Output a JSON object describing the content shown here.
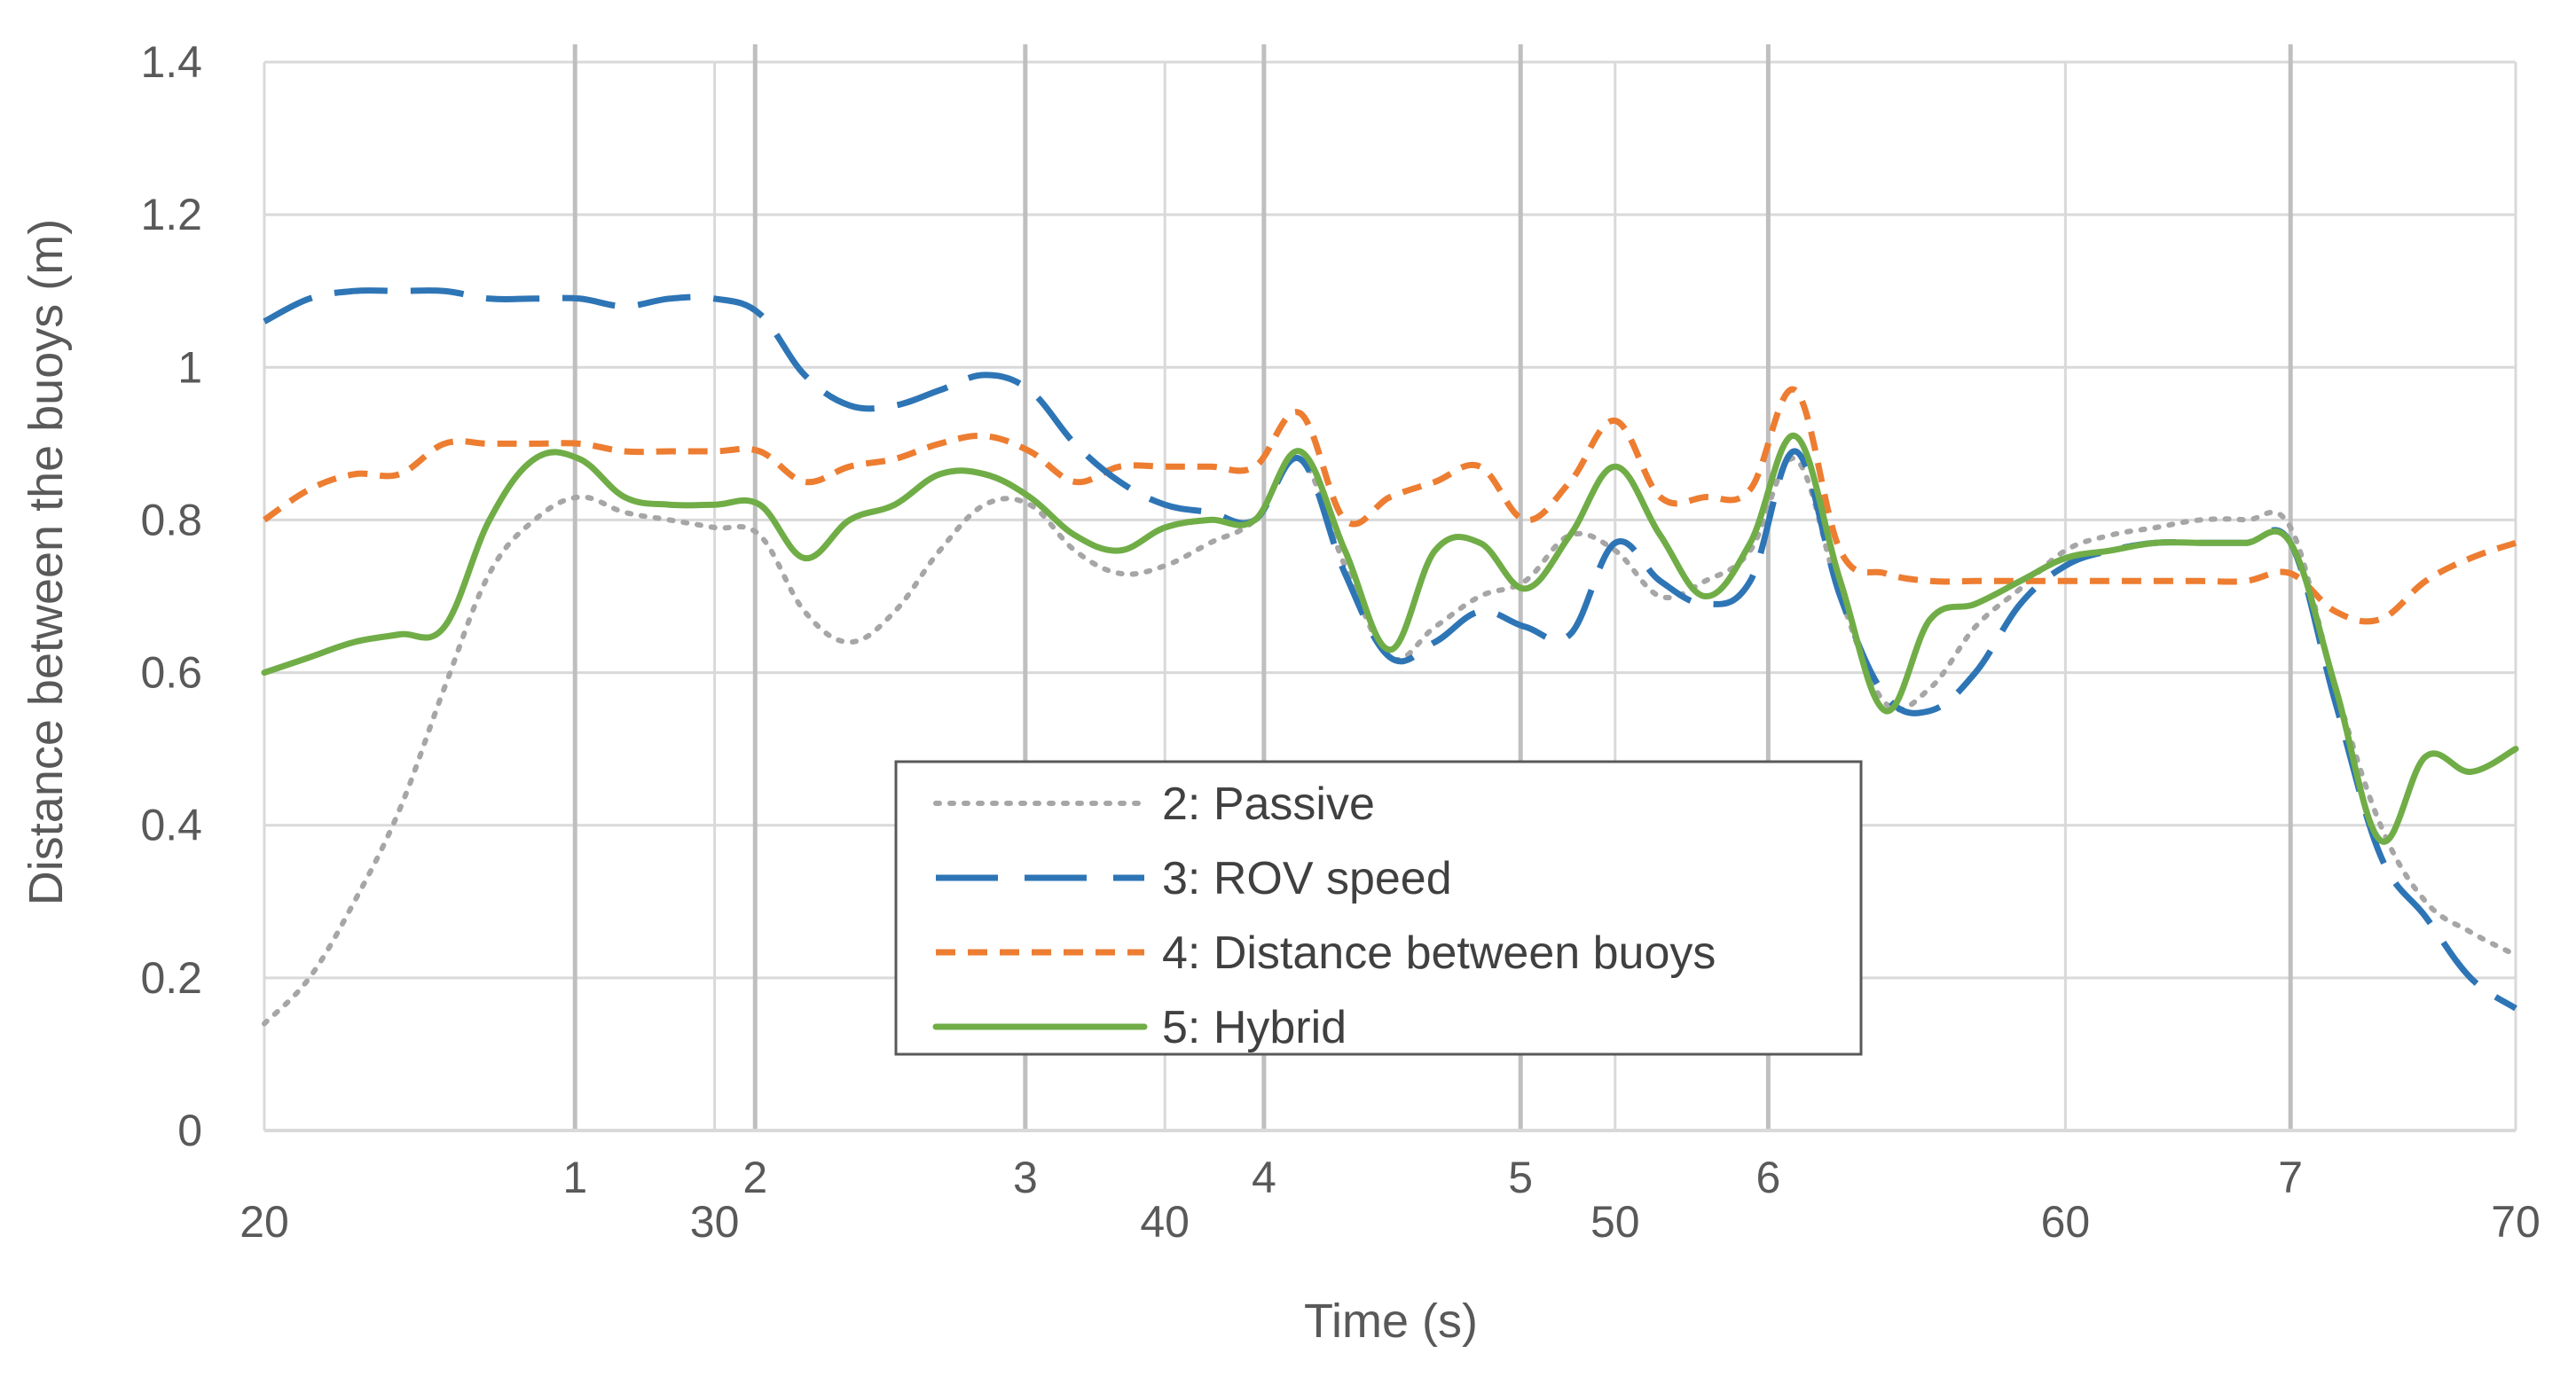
{
  "chart_data": {
    "type": "line",
    "title": "",
    "xlabel": "Time (s)",
    "ylabel": "Distance between the buoys (m)",
    "xlim": [
      20,
      70
    ],
    "ylim": [
      0,
      1.4
    ],
    "xticks": [
      20,
      30,
      40,
      50,
      60,
      70
    ],
    "yticks": [
      0,
      0.2,
      0.4,
      0.6,
      0.8,
      1,
      1.2,
      1.4
    ],
    "ytick_labels": [
      "0",
      "0.2",
      "0.4",
      "0.6",
      "0.8",
      "1",
      "1.2",
      "1.4"
    ],
    "grid": true,
    "legend_position": "bottom-center",
    "event_markers": [
      {
        "label": "1",
        "x": 26.9
      },
      {
        "label": "2",
        "x": 30.9
      },
      {
        "label": "3",
        "x": 36.9
      },
      {
        "label": "4",
        "x": 42.2
      },
      {
        "label": "5",
        "x": 47.9
      },
      {
        "label": "6",
        "x": 53.4
      },
      {
        "label": "7",
        "x": 65.0
      }
    ],
    "series": [
      {
        "name": "2: Passive",
        "color": "#a6a6a6",
        "style": "dotted",
        "points": [
          [
            20,
            0.14
          ],
          [
            21,
            0.2
          ],
          [
            22,
            0.3
          ],
          [
            23,
            0.42
          ],
          [
            24,
            0.58
          ],
          [
            25,
            0.73
          ],
          [
            26,
            0.8
          ],
          [
            27,
            0.83
          ],
          [
            28,
            0.81
          ],
          [
            29,
            0.8
          ],
          [
            30,
            0.79
          ],
          [
            31,
            0.78
          ],
          [
            32,
            0.68
          ],
          [
            33,
            0.64
          ],
          [
            34,
            0.68
          ],
          [
            35,
            0.76
          ],
          [
            36,
            0.82
          ],
          [
            37,
            0.82
          ],
          [
            38,
            0.76
          ],
          [
            39,
            0.73
          ],
          [
            40,
            0.74
          ],
          [
            41,
            0.77
          ],
          [
            42,
            0.8
          ],
          [
            43,
            0.88
          ],
          [
            44,
            0.74
          ],
          [
            45,
            0.62
          ],
          [
            46,
            0.66
          ],
          [
            47,
            0.7
          ],
          [
            48,
            0.72
          ],
          [
            49,
            0.78
          ],
          [
            50,
            0.76
          ],
          [
            51,
            0.7
          ],
          [
            52,
            0.72
          ],
          [
            53,
            0.76
          ],
          [
            54,
            0.88
          ],
          [
            55,
            0.7
          ],
          [
            56,
            0.56
          ],
          [
            57,
            0.58
          ],
          [
            58,
            0.66
          ],
          [
            59,
            0.71
          ],
          [
            60,
            0.76
          ],
          [
            61,
            0.78
          ],
          [
            62,
            0.79
          ],
          [
            63,
            0.8
          ],
          [
            64,
            0.8
          ],
          [
            65,
            0.79
          ],
          [
            66,
            0.58
          ],
          [
            67,
            0.4
          ],
          [
            68,
            0.3
          ],
          [
            69,
            0.26
          ],
          [
            70,
            0.23
          ]
        ]
      },
      {
        "name": "3: ROV speed",
        "color": "#2e75b6",
        "style": "long-dash",
        "points": [
          [
            20,
            1.06
          ],
          [
            21,
            1.09
          ],
          [
            22,
            1.1
          ],
          [
            23,
            1.1
          ],
          [
            24,
            1.1
          ],
          [
            25,
            1.09
          ],
          [
            26,
            1.09
          ],
          [
            27,
            1.09
          ],
          [
            28,
            1.08
          ],
          [
            29,
            1.09
          ],
          [
            30,
            1.09
          ],
          [
            31,
            1.07
          ],
          [
            32,
            0.99
          ],
          [
            33,
            0.95
          ],
          [
            34,
            0.95
          ],
          [
            35,
            0.97
          ],
          [
            36,
            0.99
          ],
          [
            37,
            0.97
          ],
          [
            38,
            0.9
          ],
          [
            39,
            0.85
          ],
          [
            40,
            0.82
          ],
          [
            41,
            0.81
          ],
          [
            42,
            0.8
          ],
          [
            43,
            0.88
          ],
          [
            44,
            0.73
          ],
          [
            45,
            0.62
          ],
          [
            46,
            0.64
          ],
          [
            47,
            0.68
          ],
          [
            48,
            0.66
          ],
          [
            49,
            0.65
          ],
          [
            50,
            0.77
          ],
          [
            51,
            0.72
          ],
          [
            52,
            0.69
          ],
          [
            53,
            0.72
          ],
          [
            54,
            0.89
          ],
          [
            55,
            0.7
          ],
          [
            56,
            0.57
          ],
          [
            57,
            0.55
          ],
          [
            58,
            0.6
          ],
          [
            59,
            0.69
          ],
          [
            60,
            0.74
          ],
          [
            61,
            0.76
          ],
          [
            62,
            0.77
          ],
          [
            63,
            0.77
          ],
          [
            64,
            0.77
          ],
          [
            65,
            0.77
          ],
          [
            66,
            0.56
          ],
          [
            67,
            0.36
          ],
          [
            68,
            0.28
          ],
          [
            69,
            0.2
          ],
          [
            70,
            0.16
          ]
        ]
      },
      {
        "name": "4: Distance between buoys",
        "color": "#ed7d31",
        "style": "short-dash",
        "points": [
          [
            20,
            0.8
          ],
          [
            21,
            0.84
          ],
          [
            22,
            0.86
          ],
          [
            23,
            0.86
          ],
          [
            24,
            0.9
          ],
          [
            25,
            0.9
          ],
          [
            26,
            0.9
          ],
          [
            27,
            0.9
          ],
          [
            28,
            0.89
          ],
          [
            29,
            0.89
          ],
          [
            30,
            0.89
          ],
          [
            31,
            0.89
          ],
          [
            32,
            0.85
          ],
          [
            33,
            0.87
          ],
          [
            34,
            0.88
          ],
          [
            35,
            0.9
          ],
          [
            36,
            0.91
          ],
          [
            37,
            0.89
          ],
          [
            38,
            0.85
          ],
          [
            39,
            0.87
          ],
          [
            40,
            0.87
          ],
          [
            41,
            0.87
          ],
          [
            42,
            0.87
          ],
          [
            43,
            0.94
          ],
          [
            44,
            0.8
          ],
          [
            45,
            0.83
          ],
          [
            46,
            0.85
          ],
          [
            47,
            0.87
          ],
          [
            48,
            0.8
          ],
          [
            49,
            0.85
          ],
          [
            50,
            0.93
          ],
          [
            51,
            0.83
          ],
          [
            52,
            0.83
          ],
          [
            53,
            0.84
          ],
          [
            54,
            0.97
          ],
          [
            55,
            0.76
          ],
          [
            56,
            0.73
          ],
          [
            57,
            0.72
          ],
          [
            58,
            0.72
          ],
          [
            59,
            0.72
          ],
          [
            60,
            0.72
          ],
          [
            61,
            0.72
          ],
          [
            62,
            0.72
          ],
          [
            63,
            0.72
          ],
          [
            64,
            0.72
          ],
          [
            65,
            0.73
          ],
          [
            66,
            0.68
          ],
          [
            67,
            0.67
          ],
          [
            68,
            0.72
          ],
          [
            69,
            0.75
          ],
          [
            70,
            0.77
          ]
        ]
      },
      {
        "name": "5: Hybrid",
        "color": "#70ad47",
        "style": "solid",
        "points": [
          [
            20,
            0.6
          ],
          [
            21,
            0.62
          ],
          [
            22,
            0.64
          ],
          [
            23,
            0.65
          ],
          [
            24,
            0.66
          ],
          [
            25,
            0.8
          ],
          [
            26,
            0.88
          ],
          [
            27,
            0.88
          ],
          [
            28,
            0.83
          ],
          [
            29,
            0.82
          ],
          [
            30,
            0.82
          ],
          [
            31,
            0.82
          ],
          [
            32,
            0.75
          ],
          [
            33,
            0.8
          ],
          [
            34,
            0.82
          ],
          [
            35,
            0.86
          ],
          [
            36,
            0.86
          ],
          [
            37,
            0.83
          ],
          [
            38,
            0.78
          ],
          [
            39,
            0.76
          ],
          [
            40,
            0.79
          ],
          [
            41,
            0.8
          ],
          [
            42,
            0.8
          ],
          [
            43,
            0.89
          ],
          [
            44,
            0.76
          ],
          [
            45,
            0.63
          ],
          [
            46,
            0.76
          ],
          [
            47,
            0.77
          ],
          [
            48,
            0.71
          ],
          [
            49,
            0.78
          ],
          [
            50,
            0.87
          ],
          [
            51,
            0.78
          ],
          [
            52,
            0.7
          ],
          [
            53,
            0.77
          ],
          [
            54,
            0.91
          ],
          [
            55,
            0.72
          ],
          [
            56,
            0.55
          ],
          [
            57,
            0.67
          ],
          [
            58,
            0.69
          ],
          [
            59,
            0.72
          ],
          [
            60,
            0.75
          ],
          [
            61,
            0.76
          ],
          [
            62,
            0.77
          ],
          [
            63,
            0.77
          ],
          [
            64,
            0.77
          ],
          [
            65,
            0.77
          ],
          [
            66,
            0.58
          ],
          [
            67,
            0.38
          ],
          [
            68,
            0.49
          ],
          [
            69,
            0.47
          ],
          [
            70,
            0.5
          ]
        ]
      }
    ]
  }
}
